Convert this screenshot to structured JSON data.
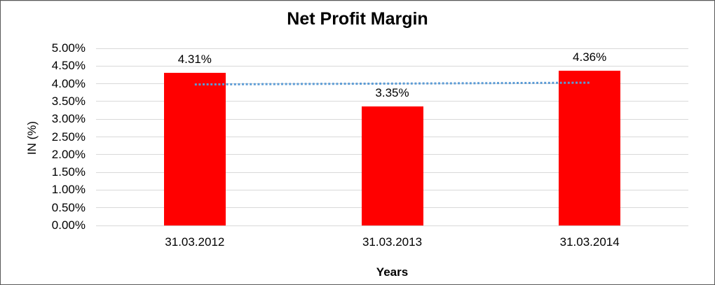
{
  "chart_data": {
    "type": "bar",
    "title": "Net Profit Margin",
    "xlabel": "Years",
    "ylabel": "IN (%)",
    "categories": [
      "31.03.2012",
      "31.03.2013",
      "31.03.2014"
    ],
    "values": [
      4.31,
      3.35,
      4.36
    ],
    "data_labels": [
      "4.31%",
      "3.35%",
      "4.36%"
    ],
    "ylim": [
      0,
      5
    ],
    "ytick_step": 0.5,
    "ytick_labels": [
      "0.00%",
      "0.50%",
      "1.00%",
      "1.50%",
      "2.00%",
      "2.50%",
      "3.00%",
      "3.50%",
      "4.00%",
      "4.50%",
      "5.00%"
    ],
    "grid": true,
    "legend": "none",
    "colors": {
      "bar": "#FF0000",
      "gridline": "#D9D9D9",
      "trendline": "#5B9BD5",
      "text": "#000000",
      "background": "#FFFFFF"
    },
    "trendline": {
      "type": "linear",
      "style": "dotted",
      "start_value": 3.98,
      "end_value": 4.03
    }
  }
}
